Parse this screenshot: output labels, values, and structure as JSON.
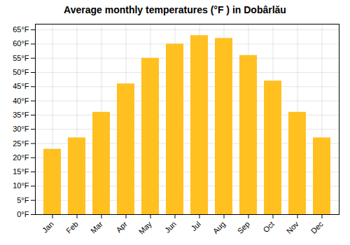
{
  "chart_data": {
    "type": "bar",
    "title": "Average monthly temperatures (°F ) in Dobârlău",
    "categories": [
      "Jan",
      "Feb",
      "Mar",
      "Apr",
      "May",
      "Jun",
      "Jul",
      "Aug",
      "Sep",
      "Oct",
      "Nov",
      "Dec"
    ],
    "values": [
      23,
      27,
      36,
      46,
      55,
      60,
      63,
      62,
      56,
      47,
      36,
      27
    ],
    "color": "#FFC020",
    "ylim": [
      0,
      67
    ],
    "yticks": [
      {
        "value": 0,
        "label": "0°F"
      },
      {
        "value": 5,
        "label": "5°F"
      },
      {
        "value": 10,
        "label": "10°F"
      },
      {
        "value": 15,
        "label": "15°F"
      },
      {
        "value": 20,
        "label": "20°F"
      },
      {
        "value": 25,
        "label": "25°F"
      },
      {
        "value": 30,
        "label": "30°F"
      },
      {
        "value": 35,
        "label": "35°F"
      },
      {
        "value": 40,
        "label": "40°F"
      },
      {
        "value": 45,
        "label": "45°F"
      },
      {
        "value": 50,
        "label": "50°F"
      },
      {
        "value": 55,
        "label": "55°F"
      },
      {
        "value": 60,
        "label": "60°F"
      },
      {
        "value": 65,
        "label": "65°F"
      }
    ],
    "grid": true
  }
}
